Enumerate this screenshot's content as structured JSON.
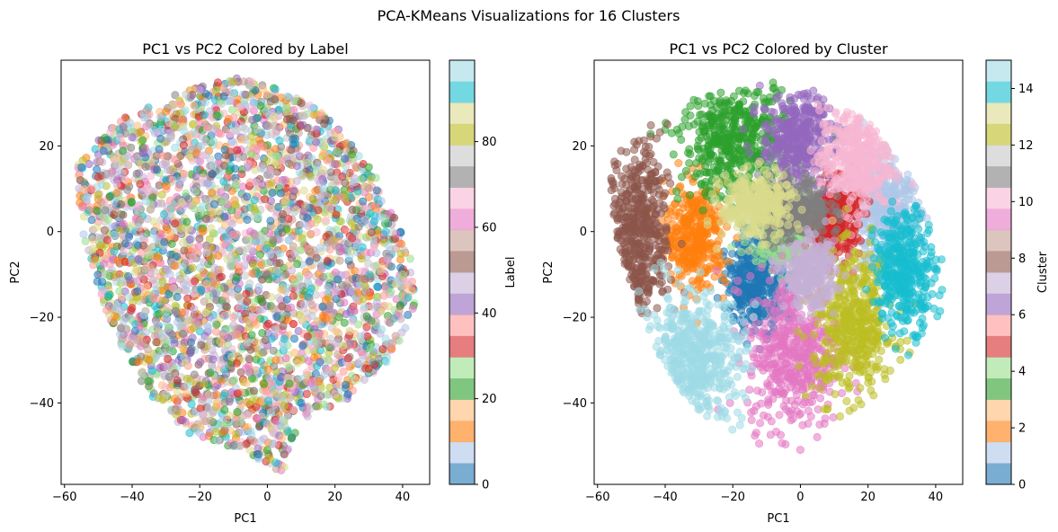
{
  "suptitle": "PCA-KMeans Visualizations for 16 Clusters",
  "palette_tab20": [
    "#1f77b4",
    "#aec7e8",
    "#ff7f0e",
    "#ffbb78",
    "#2ca02c",
    "#98df8a",
    "#d62728",
    "#ff9896",
    "#9467bd",
    "#c5b0d5",
    "#8c564b",
    "#c49c94",
    "#e377c2",
    "#f7b6d2",
    "#7f7f7f",
    "#c7c7c7",
    "#bcbd22",
    "#dbdb8d",
    "#17becf",
    "#9edae5"
  ],
  "chart_data": [
    {
      "type": "scatter",
      "title": "PC1 vs PC2 Colored by Label",
      "xlabel": "PC1",
      "ylabel": "PC2",
      "xlim": [
        -61,
        48
      ],
      "ylim": [
        -59,
        40
      ],
      "xticks": [
        -60,
        -40,
        -20,
        0,
        20,
        40
      ],
      "yticks": [
        -40,
        -20,
        0,
        20
      ],
      "xtick_labels": [
        "−60",
        "−40",
        "−20",
        "0",
        "20",
        "40"
      ],
      "ytick_labels": [
        "−40",
        "−20",
        "0",
        "20"
      ],
      "point_alpha": 0.55,
      "colormap": "tab20",
      "color_by": "Label",
      "colorbar": {
        "label": "Label",
        "range": [
          0,
          99
        ],
        "ticks": [
          0,
          20,
          40,
          60,
          80
        ],
        "tick_labels": [
          "0",
          "20",
          "40",
          "60",
          "80"
        ]
      },
      "sample_points": [
        [
          -55,
          15
        ],
        [
          -52,
          10
        ],
        [
          -48,
          5
        ],
        [
          -45,
          -18
        ],
        [
          -40,
          22
        ],
        [
          -35,
          25
        ],
        [
          -30,
          28
        ],
        [
          -20,
          33
        ],
        [
          -10,
          35
        ],
        [
          0,
          32
        ],
        [
          10,
          30
        ],
        [
          20,
          22
        ],
        [
          25,
          18
        ],
        [
          30,
          10
        ],
        [
          35,
          0
        ],
        [
          40,
          -10
        ],
        [
          43,
          -18
        ],
        [
          35,
          -25
        ],
        [
          30,
          -32
        ],
        [
          20,
          -38
        ],
        [
          10,
          -40
        ],
        [
          0,
          -45
        ],
        [
          -10,
          -50
        ],
        [
          -20,
          -47
        ],
        [
          -25,
          -44
        ],
        [
          -30,
          -38
        ],
        [
          -35,
          -30
        ],
        [
          -40,
          -25
        ],
        [
          -45,
          -10
        ],
        [
          -15,
          -40
        ],
        [
          5,
          -52
        ],
        [
          5,
          -55
        ],
        [
          0,
          -51
        ],
        [
          -8,
          -50
        ],
        [
          -23,
          -47
        ],
        [
          -12,
          -45
        ],
        [
          -5,
          0
        ],
        [
          -18,
          -5
        ],
        [
          15,
          5
        ],
        [
          -28,
          12
        ],
        [
          8,
          -25
        ],
        [
          -10,
          -20
        ]
      ]
    },
    {
      "type": "scatter",
      "title": "PC1 vs PC2 Colored by Cluster",
      "xlabel": "PC1",
      "ylabel": "PC2",
      "xlim": [
        -61,
        48
      ],
      "ylim": [
        -59,
        40
      ],
      "xticks": [
        -60,
        -40,
        -20,
        0,
        20,
        40
      ],
      "yticks": [
        -40,
        -20,
        0,
        20
      ],
      "xtick_labels": [
        "−60",
        "−40",
        "−20",
        "0",
        "20",
        "40"
      ],
      "ytick_labels": [
        "−40",
        "−20",
        "0",
        "20"
      ],
      "point_alpha": 0.55,
      "colormap": "tab20",
      "color_by": "Cluster",
      "colorbar": {
        "label": "Cluster",
        "range": [
          0,
          15
        ],
        "ticks": [
          0,
          2,
          4,
          6,
          8,
          10,
          12,
          14
        ],
        "tick_labels": [
          "0",
          "2",
          "4",
          "6",
          "8",
          "10",
          "12",
          "14"
        ]
      },
      "clusters": [
        {
          "id": 0,
          "center": [
            -13,
            -12
          ],
          "spread": [
            6,
            7
          ],
          "color": "#1f77b4"
        },
        {
          "id": 1,
          "center": [
            25,
            5
          ],
          "spread": [
            7,
            9
          ],
          "color": "#aec7e8"
        },
        {
          "id": 2,
          "center": [
            -31,
            -1
          ],
          "spread": [
            6,
            8
          ],
          "color": "#ff7f0e"
        },
        {
          "id": 3,
          "center": [
            -19,
            21
          ],
          "spread": [
            11,
            9
          ],
          "color": "#2ca02c"
        },
        {
          "id": 4,
          "center": [
            -4,
            0
          ],
          "spread": [
            7,
            5
          ],
          "color": "#98df8a"
        },
        {
          "id": 5,
          "center": [
            10,
            3
          ],
          "spread": [
            5,
            6
          ],
          "color": "#d62728"
        },
        {
          "id": 6,
          "center": [
            -1,
            22
          ],
          "spread": [
            7,
            7
          ],
          "color": "#9467bd"
        },
        {
          "id": 7,
          "center": [
            -48,
            0
          ],
          "spread": [
            6,
            14
          ],
          "color": "#8c564b"
        },
        {
          "id": 8,
          "center": [
            -2,
            -28
          ],
          "spread": [
            9,
            12
          ],
          "color": "#e377c2"
        },
        {
          "id": 9,
          "center": [
            16,
            17
          ],
          "spread": [
            7,
            8
          ],
          "color": "#f7b6d2"
        },
        {
          "id": 10,
          "center": [
            -2,
            5
          ],
          "spread": [
            7,
            5
          ],
          "color": "#7f7f7f"
        },
        {
          "id": 11,
          "center": [
            16,
            -22
          ],
          "spread": [
            8,
            11
          ],
          "color": "#bcbd22"
        },
        {
          "id": 12,
          "center": [
            -13,
            6
          ],
          "spread": [
            7,
            5
          ],
          "color": "#dbdb8d"
        },
        {
          "id": 13,
          "center": [
            31,
            -9
          ],
          "spread": [
            6,
            9
          ],
          "color": "#17becf"
        },
        {
          "id": 14,
          "center": [
            -32,
            -30
          ],
          "spread": [
            10,
            10
          ],
          "color": "#9edae5"
        },
        {
          "id": 15,
          "center": [
            3,
            -10
          ],
          "spread": [
            5,
            5
          ],
          "color": "#c5b0d5"
        }
      ]
    }
  ]
}
